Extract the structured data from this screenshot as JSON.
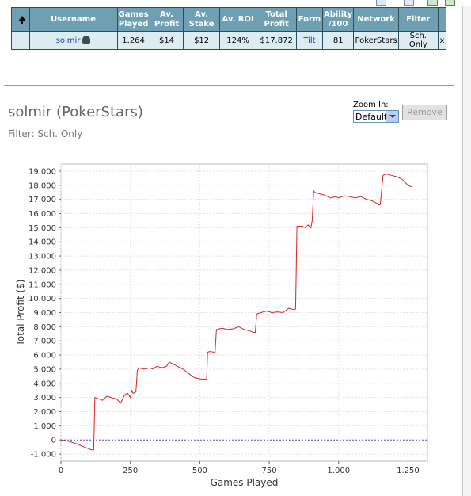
{
  "table": {
    "headers": [
      {
        "key": "username",
        "label": "Username"
      },
      {
        "key": "games_played",
        "label": "Games Played"
      },
      {
        "key": "av_profit",
        "label": "Av. Profit"
      },
      {
        "key": "av_stake",
        "label": "Av. Stake"
      },
      {
        "key": "av_roi",
        "label": "Av. ROI"
      },
      {
        "key": "total_profit",
        "label": "Total Profit"
      },
      {
        "key": "form",
        "label": "Form"
      },
      {
        "key": "ability",
        "label": "Ability /100"
      },
      {
        "key": "network",
        "label": "Network"
      },
      {
        "key": "filter",
        "label": "Filter"
      }
    ],
    "row": {
      "username": "solmir",
      "games_played": "1.264",
      "av_profit": "$14",
      "av_stake": "$12",
      "av_roi": "124%",
      "total_profit": "$17.872",
      "form": "Tilt",
      "ability": "81",
      "network": "PokerStars",
      "filter": "Sch. Only",
      "remove": "x"
    }
  },
  "player_title": "solmir (PokerStars)",
  "filter_text": "Filter: Sch. Only",
  "zoom": {
    "label": "Zoom In:",
    "selected": "Default"
  },
  "remove_label": "Remove",
  "colors": {
    "header_bg": "#6e9fb3",
    "row_bg": "#dcecf1",
    "line": "#dd2222",
    "zero_line": "#5555cc"
  },
  "chart_data": {
    "type": "line",
    "title": "",
    "xlabel": "Games Played",
    "ylabel": "Total Profit ($)",
    "xlim": [
      0,
      1320
    ],
    "ylim": [
      -1500,
      19500
    ],
    "x_ticks": [
      0,
      250,
      500,
      750,
      1000,
      1250
    ],
    "x_tick_labels": [
      "0",
      "250",
      "500",
      "750",
      "1.000",
      "1.250"
    ],
    "y_ticks": [
      -1000,
      0,
      1000,
      2000,
      3000,
      4000,
      5000,
      6000,
      7000,
      8000,
      9000,
      10000,
      11000,
      12000,
      13000,
      14000,
      15000,
      16000,
      17000,
      18000,
      19000
    ],
    "y_tick_labels": [
      "-1.000",
      "0",
      "1.000",
      "2.000",
      "3.000",
      "4.000",
      "5.000",
      "6.000",
      "7.000",
      "8.000",
      "9.000",
      "10.000",
      "11.000",
      "12.000",
      "13.000",
      "14.000",
      "15.000",
      "16.000",
      "17.000",
      "18.000",
      "19.000"
    ],
    "grid": true,
    "zero_line": true,
    "series": [
      {
        "x": [
          0,
          30,
          60,
          90,
          110,
          118,
          122,
          150,
          165,
          180,
          200,
          215,
          230,
          240,
          250,
          255,
          260,
          270,
          275,
          280,
          300,
          320,
          330,
          345,
          365,
          380,
          390,
          400,
          420,
          440,
          460,
          480,
          505,
          525,
          528,
          535,
          555,
          560,
          580,
          600,
          620,
          640,
          660,
          680,
          695,
          700,
          705,
          720,
          740,
          760,
          780,
          800,
          820,
          840,
          845,
          850,
          870,
          880,
          890,
          900,
          905,
          910,
          915,
          930,
          950,
          970,
          990,
          1000,
          1020,
          1040,
          1060,
          1080,
          1100,
          1120,
          1140,
          1145,
          1150,
          1160,
          1170,
          1190,
          1210,
          1230,
          1250,
          1264
        ],
        "y": [
          0,
          -100,
          -300,
          -550,
          -700,
          -700,
          3000,
          2800,
          3100,
          3000,
          2900,
          2600,
          3200,
          3300,
          3000,
          3500,
          3300,
          3400,
          4900,
          5100,
          5000,
          5100,
          5000,
          5200,
          5100,
          5200,
          5500,
          5400,
          5200,
          5000,
          4700,
          4400,
          4300,
          4300,
          6200,
          6250,
          6200,
          7800,
          7900,
          7800,
          7850,
          8000,
          7800,
          7700,
          7600,
          7600,
          8900,
          9000,
          9100,
          9000,
          9050,
          9000,
          9300,
          9200,
          9250,
          15100,
          15100,
          15000,
          15200,
          15000,
          15500,
          17600,
          17500,
          17400,
          17300,
          17100,
          17200,
          17100,
          17250,
          17200,
          17100,
          17200,
          17000,
          16900,
          16700,
          16600,
          16650,
          18700,
          18800,
          18700,
          18600,
          18400,
          18000,
          17872
        ]
      }
    ]
  }
}
